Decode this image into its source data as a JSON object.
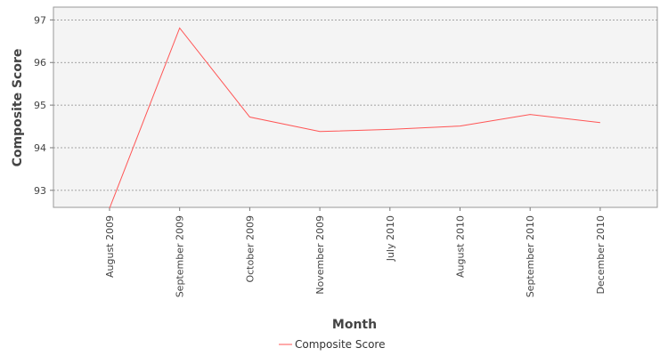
{
  "chart_data": {
    "type": "line",
    "categories": [
      "August 2009",
      "September 2009",
      "October 2009",
      "November 2009",
      "July 2010",
      "August 2010",
      "September 2010",
      "December 2010"
    ],
    "series": [
      {
        "name": "Composite Score",
        "values": [
          92.58,
          96.81,
          94.72,
          94.38,
          94.43,
          94.51,
          94.78,
          94.59
        ],
        "color": "#ff5555"
      }
    ],
    "title": "",
    "xlabel": "Month",
    "ylabel": "Composite Score",
    "ylim": [
      92.6,
      97.3
    ],
    "yticks": [
      "93",
      "94",
      "95",
      "96",
      "97"
    ],
    "grid": true,
    "legend_position": "bottom-center"
  }
}
